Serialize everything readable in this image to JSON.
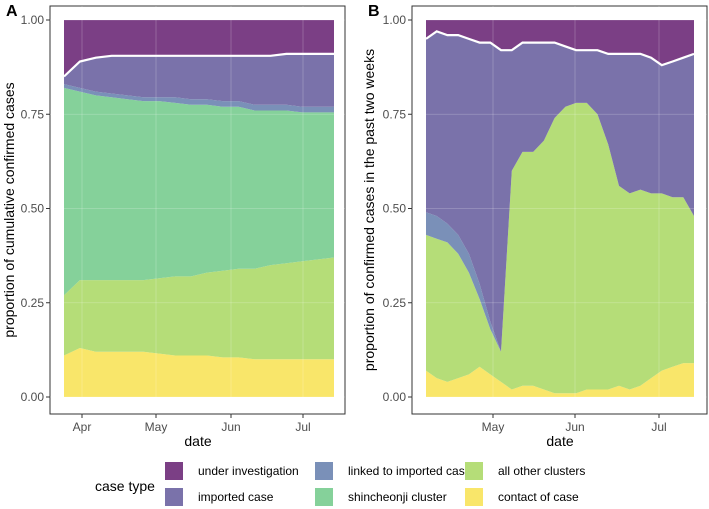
{
  "chart_data": [
    {
      "type": "area",
      "panel": "A",
      "xlabel": "date",
      "ylabel": "proportion of cumulative confirmed cases",
      "x_ticks": [
        "Apr",
        "May",
        "Jun",
        "Jul"
      ],
      "y_ticks": [
        "0.00",
        "0.25",
        "0.50",
        "0.75",
        "1.00"
      ],
      "ylim": [
        0,
        1
      ],
      "x": [
        0,
        1,
        2,
        3,
        4,
        5,
        6,
        7,
        8,
        9,
        10,
        11,
        12,
        13,
        14,
        15,
        16,
        17
      ],
      "series": [
        {
          "name": "contact of case",
          "values": [
            0.11,
            0.13,
            0.12,
            0.12,
            0.12,
            0.12,
            0.115,
            0.11,
            0.11,
            0.11,
            0.105,
            0.105,
            0.1,
            0.1,
            0.1,
            0.1,
            0.1,
            0.1
          ]
        },
        {
          "name": "all other clusters",
          "values": [
            0.16,
            0.18,
            0.19,
            0.19,
            0.19,
            0.19,
            0.2,
            0.21,
            0.21,
            0.22,
            0.23,
            0.235,
            0.24,
            0.25,
            0.255,
            0.26,
            0.265,
            0.27
          ]
        },
        {
          "name": "shincheonji cluster",
          "values": [
            0.55,
            0.5,
            0.49,
            0.485,
            0.48,
            0.475,
            0.47,
            0.46,
            0.455,
            0.445,
            0.435,
            0.43,
            0.42,
            0.41,
            0.405,
            0.395,
            0.39,
            0.385
          ]
        },
        {
          "name": "linked to imported case",
          "values": [
            0.01,
            0.01,
            0.01,
            0.01,
            0.01,
            0.01,
            0.01,
            0.015,
            0.015,
            0.015,
            0.015,
            0.015,
            0.015,
            0.015,
            0.015,
            0.015,
            0.015,
            0.015
          ]
        },
        {
          "name": "imported case",
          "values": [
            0.02,
            0.07,
            0.09,
            0.1,
            0.105,
            0.11,
            0.11,
            0.11,
            0.115,
            0.115,
            0.12,
            0.12,
            0.13,
            0.13,
            0.135,
            0.14,
            0.14,
            0.14
          ]
        },
        {
          "name": "under investigation",
          "values": [
            0.15,
            0.11,
            0.1,
            0.095,
            0.095,
            0.095,
            0.095,
            0.095,
            0.095,
            0.095,
            0.095,
            0.095,
            0.095,
            0.095,
            0.09,
            0.09,
            0.09,
            0.09
          ]
        }
      ]
    },
    {
      "type": "area",
      "panel": "B",
      "xlabel": "date",
      "ylabel": "proportion of confirmed cases in the past two weeks",
      "x_ticks": [
        "May",
        "Jun",
        "Jul"
      ],
      "y_ticks": [
        "0.00",
        "0.25",
        "0.50",
        "0.75",
        "1.00"
      ],
      "ylim": [
        0,
        1
      ],
      "x": [
        0,
        1,
        2,
        3,
        4,
        5,
        6,
        7,
        8,
        9,
        10,
        11,
        12,
        13,
        14,
        15,
        16,
        17,
        18,
        19,
        20,
        21,
        22,
        23,
        24,
        25
      ],
      "series": [
        {
          "name": "contact of case",
          "values": [
            0.07,
            0.05,
            0.04,
            0.05,
            0.06,
            0.08,
            0.06,
            0.04,
            0.02,
            0.03,
            0.03,
            0.02,
            0.01,
            0.01,
            0.01,
            0.02,
            0.02,
            0.02,
            0.03,
            0.02,
            0.03,
            0.05,
            0.07,
            0.08,
            0.09,
            0.09
          ]
        },
        {
          "name": "all other clusters",
          "values": [
            0.36,
            0.37,
            0.37,
            0.33,
            0.27,
            0.18,
            0.12,
            0.08,
            0.58,
            0.62,
            0.62,
            0.66,
            0.73,
            0.76,
            0.77,
            0.76,
            0.73,
            0.65,
            0.53,
            0.52,
            0.52,
            0.49,
            0.47,
            0.45,
            0.44,
            0.39
          ]
        },
        {
          "name": "shincheonji cluster",
          "values": [
            0,
            0,
            0,
            0,
            0,
            0,
            0,
            0,
            0,
            0,
            0,
            0,
            0,
            0,
            0,
            0,
            0,
            0,
            0,
            0,
            0,
            0,
            0,
            0,
            0,
            0
          ]
        },
        {
          "name": "linked to imported case",
          "values": [
            0.06,
            0.06,
            0.05,
            0.05,
            0.05,
            0.04,
            0.02,
            0,
            0,
            0,
            0,
            0,
            0,
            0,
            0,
            0,
            0,
            0,
            0,
            0,
            0,
            0,
            0,
            0,
            0,
            0
          ]
        },
        {
          "name": "imported case",
          "values": [
            0.46,
            0.49,
            0.5,
            0.53,
            0.57,
            0.64,
            0.74,
            0.8,
            0.32,
            0.29,
            0.29,
            0.26,
            0.2,
            0.16,
            0.14,
            0.14,
            0.17,
            0.24,
            0.35,
            0.37,
            0.36,
            0.36,
            0.34,
            0.36,
            0.37,
            0.43
          ]
        },
        {
          "name": "under investigation",
          "values": [
            0.05,
            0.03,
            0.04,
            0.04,
            0.05,
            0.06,
            0.06,
            0.08,
            0.08,
            0.06,
            0.06,
            0.06,
            0.06,
            0.07,
            0.08,
            0.08,
            0.08,
            0.09,
            0.09,
            0.09,
            0.09,
            0.1,
            0.12,
            0.11,
            0.1,
            0.09
          ]
        }
      ]
    }
  ],
  "colors": {
    "under investigation": "#7b3f85",
    "imported case": "#7a72aa",
    "linked to imported case": "#7a90b8",
    "shincheonji cluster": "#85d19a",
    "all other clusters": "#b5dd78",
    "contact of case": "#f9e66a"
  },
  "legend": {
    "title": "case type",
    "items": [
      {
        "label": "under investigation",
        "color": "#7b3f85"
      },
      {
        "label": "imported case",
        "color": "#7a72aa"
      },
      {
        "label": "linked to imported case",
        "color": "#7a90b8"
      },
      {
        "label": "shincheonji cluster",
        "color": "#85d19a"
      },
      {
        "label": "all other clusters",
        "color": "#b5dd78"
      },
      {
        "label": "contact of case",
        "color": "#f9e66a"
      }
    ]
  }
}
